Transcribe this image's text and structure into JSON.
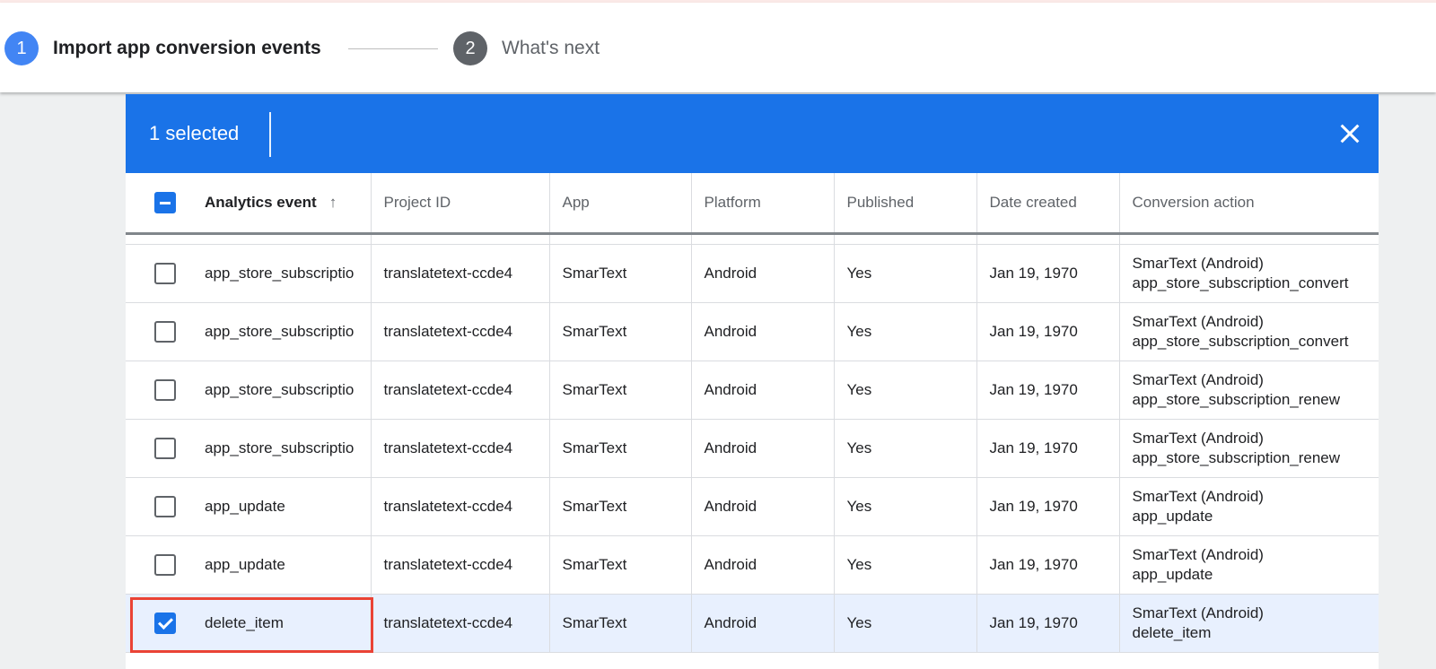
{
  "stepper": {
    "steps": [
      {
        "number": "1",
        "label": "Import app conversion events"
      },
      {
        "number": "2",
        "label": "What's next"
      }
    ]
  },
  "selection": {
    "count_label": "1 selected"
  },
  "table": {
    "columns": [
      "Analytics event",
      "Project ID",
      "App",
      "Platform",
      "Published",
      "Date created",
      "Conversion action"
    ],
    "sort_icon": "arrow-up-icon",
    "rows": [
      {
        "event": "app_store_subscriptio",
        "project": "translatetext-ccde4",
        "app": "SmarText",
        "platform": "Android",
        "published": "Yes",
        "date": "Jan 19, 1970",
        "action_app": "SmarText (Android)",
        "action_event": "app_store_subscription_convert",
        "checked": false
      },
      {
        "event": "app_store_subscriptio",
        "project": "translatetext-ccde4",
        "app": "SmarText",
        "platform": "Android",
        "published": "Yes",
        "date": "Jan 19, 1970",
        "action_app": "SmarText (Android)",
        "action_event": "app_store_subscription_convert",
        "checked": false
      },
      {
        "event": "app_store_subscriptio",
        "project": "translatetext-ccde4",
        "app": "SmarText",
        "platform": "Android",
        "published": "Yes",
        "date": "Jan 19, 1970",
        "action_app": "SmarText (Android)",
        "action_event": "app_store_subscription_renew",
        "checked": false
      },
      {
        "event": "app_store_subscriptio",
        "project": "translatetext-ccde4",
        "app": "SmarText",
        "platform": "Android",
        "published": "Yes",
        "date": "Jan 19, 1970",
        "action_app": "SmarText (Android)",
        "action_event": "app_store_subscription_renew",
        "checked": false
      },
      {
        "event": "app_update",
        "project": "translatetext-ccde4",
        "app": "SmarText",
        "platform": "Android",
        "published": "Yes",
        "date": "Jan 19, 1970",
        "action_app": "SmarText (Android)",
        "action_event": "app_update",
        "checked": false
      },
      {
        "event": "app_update",
        "project": "translatetext-ccde4",
        "app": "SmarText",
        "platform": "Android",
        "published": "Yes",
        "date": "Jan 19, 1970",
        "action_app": "SmarText (Android)",
        "action_event": "app_update",
        "checked": false
      },
      {
        "event": "delete_item",
        "project": "translatetext-ccde4",
        "app": "SmarText",
        "platform": "Android",
        "published": "Yes",
        "date": "Jan 19, 1970",
        "action_app": "SmarText (Android)",
        "action_event": "delete_item",
        "checked": true
      }
    ]
  },
  "colors": {
    "accent": "#1a73e8",
    "highlight": "#ea4335",
    "selected_row": "#e8f0fe"
  }
}
